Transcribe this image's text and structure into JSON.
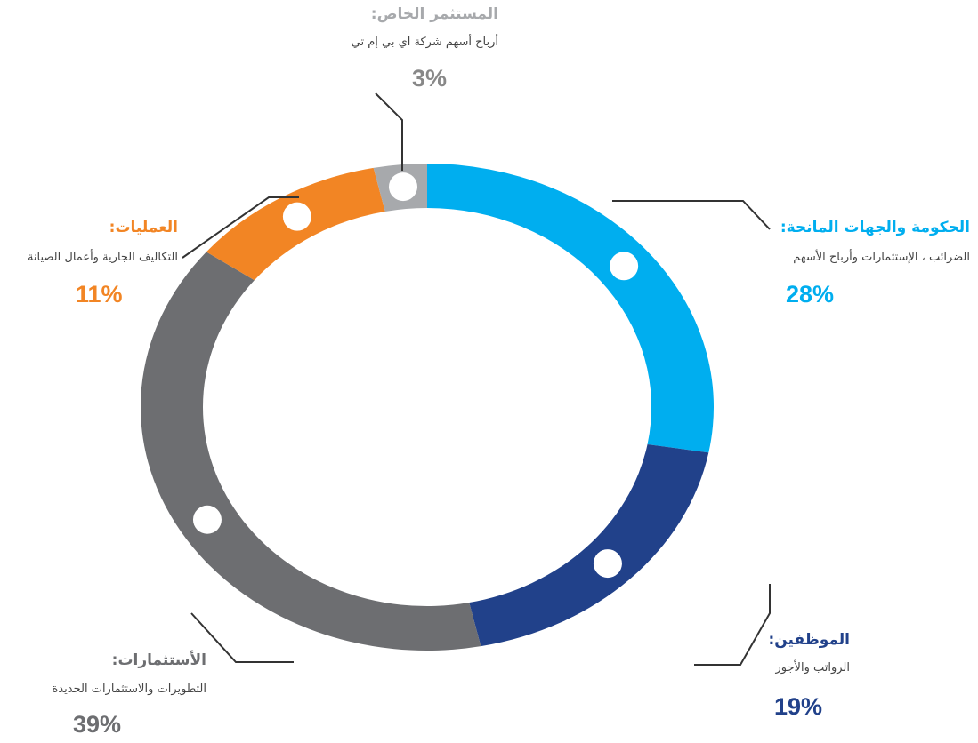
{
  "chart_data": {
    "type": "donut",
    "categories": [
      "الحكومة والجهات المانحة:",
      "الموظفين:",
      "الأستثمارات:",
      "العمليات:",
      "المستثمر الخاص:"
    ],
    "subtitles": [
      "الضرائب ، الإستثمارات وأرباح الأسهم",
      "الرواتب والأجور",
      "التطويرات والاستثمارات الجديدة",
      "التكاليف الجارية وأعمال الصيانة",
      "أرباح أسهم شركة اي بي إم تي"
    ],
    "values": [
      28,
      19,
      39,
      11,
      3
    ],
    "value_labels": [
      "28%",
      "19%",
      "39%",
      "11%",
      "3%"
    ],
    "colors": [
      "#00aeef",
      "#21418a",
      "#6d6e71",
      "#f28524",
      "#a7a9ac"
    ]
  }
}
